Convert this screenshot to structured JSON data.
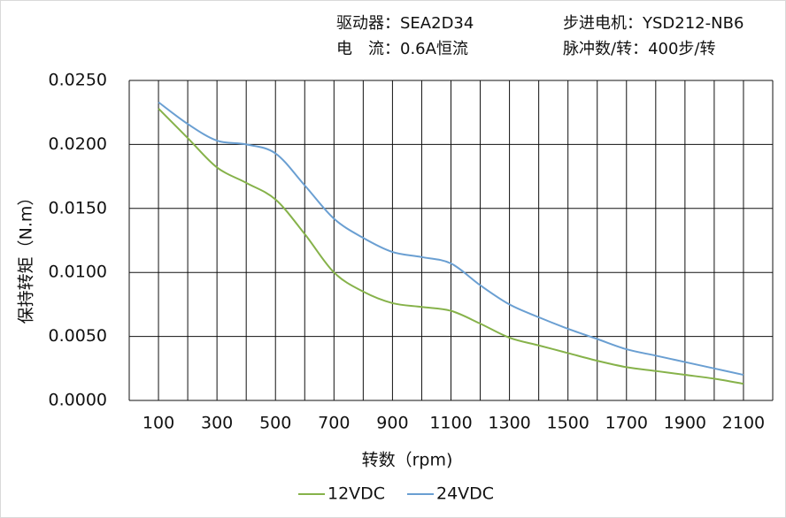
{
  "chart_data": {
    "type": "line",
    "header": [
      "驱动器：SEA2D34",
      "步进电机：YSD212-NB6",
      "电　流：0.6A恒流",
      "脉冲数/转：400步/转"
    ],
    "x_label": "转数（rpm)",
    "y_label": "保持转矩（N.m）",
    "x": [
      100,
      200,
      300,
      400,
      500,
      600,
      700,
      800,
      900,
      1000,
      1100,
      1200,
      1300,
      1400,
      1500,
      1600,
      1700,
      1800,
      1900,
      2000,
      2100
    ],
    "series": [
      {
        "name": "12VDC",
        "color": "#86b24a",
        "values": [
          0.0228,
          0.0205,
          0.0182,
          0.017,
          0.0157,
          0.013,
          0.01,
          0.0085,
          0.0076,
          0.0073,
          0.007,
          0.006,
          0.0049,
          0.0043,
          0.0037,
          0.0031,
          0.0026,
          0.0023,
          0.002,
          0.0017,
          0.0013
        ]
      },
      {
        "name": "24VDC",
        "color": "#6a9fd2",
        "values": [
          0.0233,
          0.0216,
          0.0203,
          0.02,
          0.0193,
          0.0168,
          0.0142,
          0.0127,
          0.0116,
          0.0112,
          0.0107,
          0.009,
          0.0075,
          0.0065,
          0.0056,
          0.0048,
          0.004,
          0.0035,
          0.003,
          0.0025,
          0.002
        ]
      }
    ],
    "xlim": [
      0,
      2200
    ],
    "xticks": [
      100,
      300,
      500,
      700,
      900,
      1100,
      1300,
      1500,
      1700,
      1900,
      2100
    ],
    "x_minor_ticks": [
      0,
      200,
      400,
      600,
      800,
      1000,
      1200,
      1400,
      1600,
      1800,
      2000,
      2200
    ],
    "ylim": [
      0,
      0.025
    ],
    "yticks": [
      {
        "value": 0,
        "label": "0.0000"
      },
      {
        "value": 0.005,
        "label": "0.0050"
      },
      {
        "value": 0.01,
        "label": "0.0100"
      },
      {
        "value": 0.015,
        "label": "0.0150"
      },
      {
        "value": 0.02,
        "label": "0.0200"
      },
      {
        "value": 0.025,
        "label": "0.0250"
      }
    ],
    "grid": true,
    "legend": "bottom"
  }
}
